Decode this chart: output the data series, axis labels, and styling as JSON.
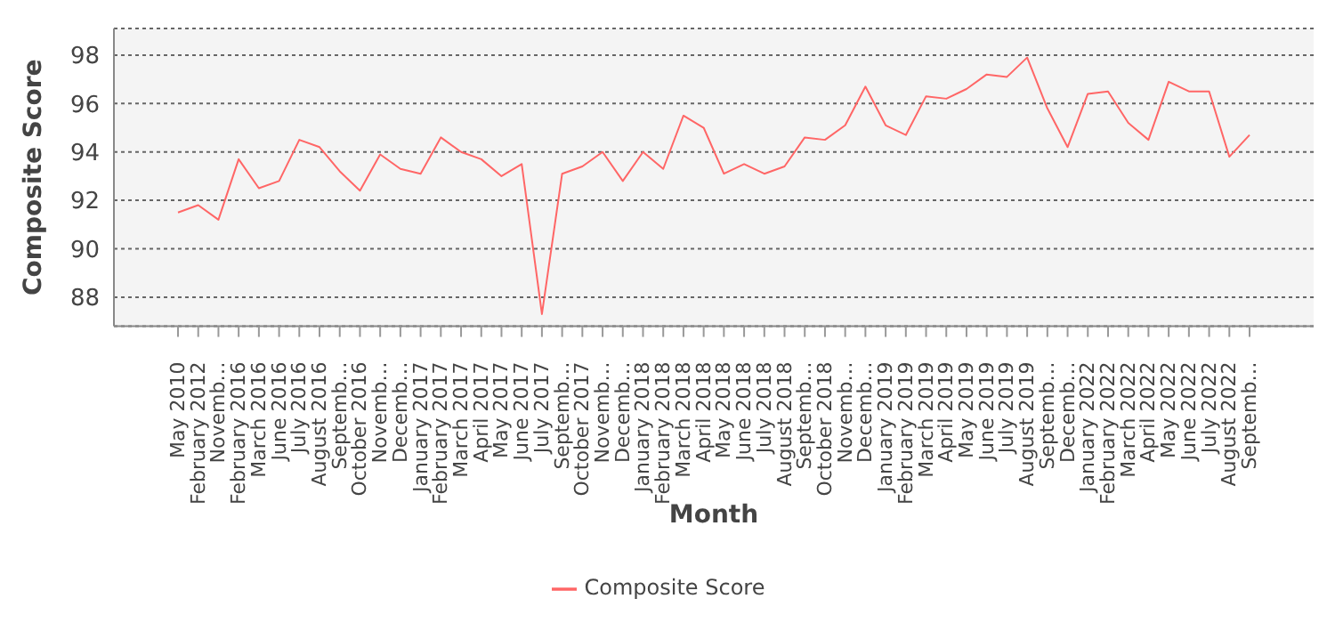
{
  "chart_data": {
    "type": "line",
    "xlabel": "Month",
    "ylabel": "Composite Score",
    "categories": [
      "May 2010",
      "February 2012",
      "Novemb…",
      "February 2016",
      "March 2016",
      "June 2016",
      "July 2016",
      "August 2016",
      "Septemb…",
      "October 2016",
      "Novemb…",
      "Decemb…",
      "January 2017",
      "February 2017",
      "March 2017",
      "April 2017",
      "May 2017",
      "June 2017",
      "July 2017",
      "Septemb…",
      "October 2017",
      "Novemb…",
      "Decemb…",
      "January 2018",
      "February 2018",
      "March 2018",
      "April 2018",
      "May 2018",
      "June 2018",
      "July 2018",
      "August 2018",
      "Septemb…",
      "October 2018",
      "Novemb…",
      "Decemb…",
      "January 2019",
      "February 2019",
      "March 2019",
      "April 2019",
      "May 2019",
      "June 2019",
      "July 2019",
      "August 2019",
      "Septemb…",
      "Decemb…",
      "January 2022",
      "February 2022",
      "March 2022",
      "April 2022",
      "May 2022",
      "June 2022",
      "July 2022",
      "August 2022",
      "Septemb…"
    ],
    "series": [
      {
        "name": "Composite Score",
        "color": "#ff6666",
        "values": [
          91.5,
          91.8,
          91.2,
          93.7,
          92.5,
          92.8,
          94.5,
          94.2,
          93.2,
          92.4,
          93.9,
          93.3,
          93.1,
          94.6,
          94.0,
          93.7,
          93.0,
          93.5,
          87.3,
          93.1,
          93.4,
          94.0,
          92.8,
          94.0,
          93.3,
          95.5,
          95.0,
          93.1,
          93.5,
          93.1,
          93.4,
          94.6,
          94.5,
          95.1,
          96.7,
          95.1,
          94.7,
          96.3,
          96.2,
          96.6,
          97.2,
          97.1,
          97.9,
          95.8,
          94.2,
          96.4,
          96.5,
          95.2,
          94.5,
          96.9,
          96.5,
          96.5,
          93.8,
          94.7
        ]
      }
    ],
    "ylim": [
      86.8,
      99.1
    ],
    "yticks": [
      88,
      90,
      92,
      94,
      96,
      98
    ],
    "grid": "y",
    "legend": "bottom",
    "marker": "none",
    "line_style": "solid"
  }
}
